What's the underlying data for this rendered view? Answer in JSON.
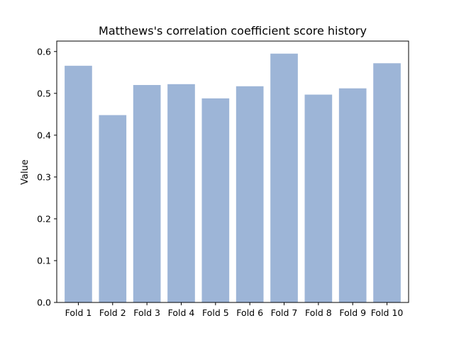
{
  "chart_data": {
    "type": "bar",
    "title": "Matthews's correlation coefficient score history",
    "xlabel": "",
    "ylabel": "Value",
    "categories": [
      "Fold 1",
      "Fold 2",
      "Fold 3",
      "Fold 4",
      "Fold 5",
      "Fold 6",
      "Fold 7",
      "Fold 8",
      "Fold 9",
      "Fold 10"
    ],
    "values": [
      0.566,
      0.448,
      0.52,
      0.522,
      0.488,
      0.517,
      0.595,
      0.497,
      0.512,
      0.572
    ],
    "ylim": [
      0,
      0.625
    ],
    "yticks": [
      "0.0",
      "0.1",
      "0.2",
      "0.3",
      "0.4",
      "0.5",
      "0.6"
    ],
    "grid": false,
    "bar_color": "#9db5d7"
  }
}
